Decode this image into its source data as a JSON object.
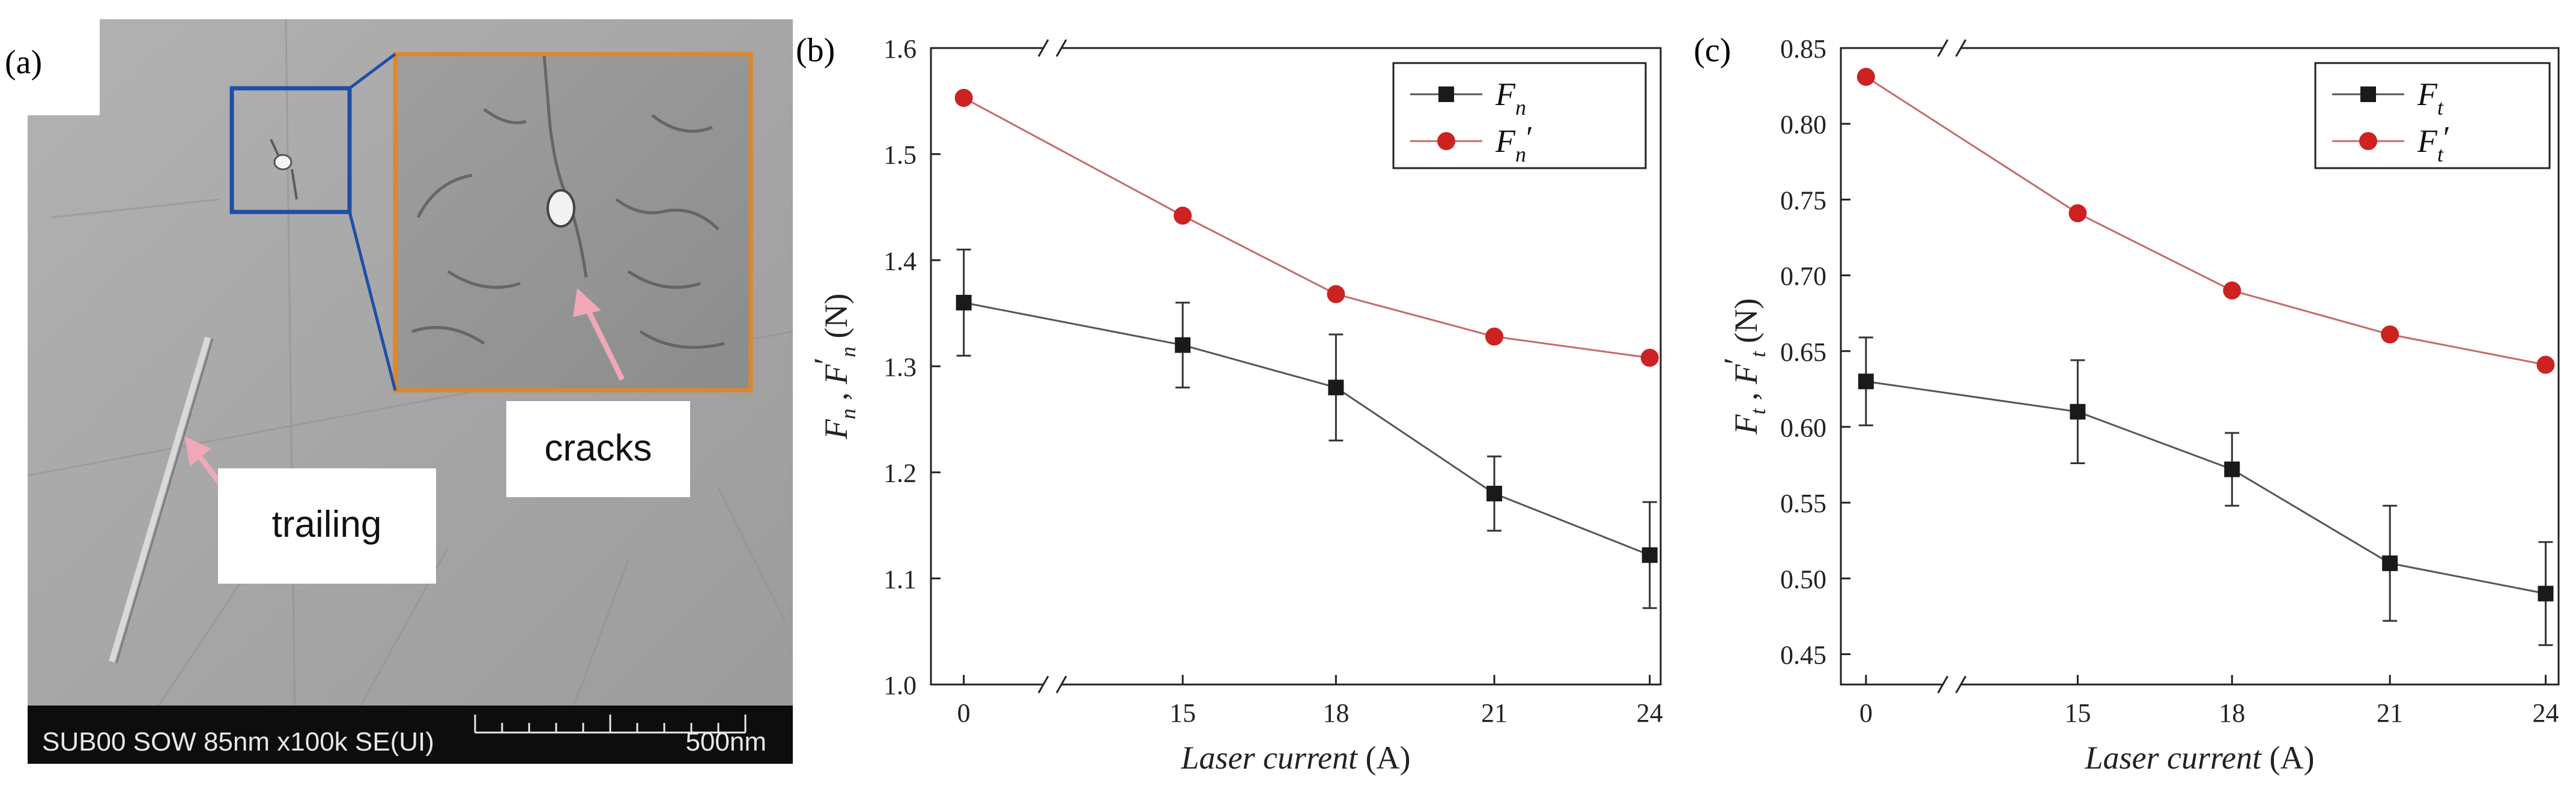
{
  "panels": {
    "a": {
      "letter": "(a)",
      "sem_info": "SUB00 SOW 85nm x100k SE(UI)",
      "scale_label": "500nm",
      "labels": {
        "cracks": "cracks",
        "trailing": "trailing"
      },
      "colors": {
        "blue_box": "#1f4ea8",
        "orange_box": "#e0862a",
        "arrow": "#f0a8b8"
      }
    },
    "b": {
      "letter": "(b)"
    },
    "c": {
      "letter": "(c)"
    }
  },
  "chart_data": [
    {
      "type": "line",
      "panel": "b",
      "x_categories": [
        "0",
        "15",
        "18",
        "21",
        "24"
      ],
      "xlabel": {
        "italic": "Laser current",
        "normal": " (A)"
      },
      "ylabel": {
        "base": "F",
        "sub": "n",
        "sep": " , ",
        "base2": "F",
        "prime": "′",
        "sub2": "n",
        "unit": " (N)"
      },
      "ylim": [
        1.0,
        1.6
      ],
      "yticks": [
        1.0,
        1.1,
        1.2,
        1.3,
        1.4,
        1.5,
        1.6
      ],
      "ytick_labels": [
        "1.0",
        "1.1",
        "1.2",
        "1.3",
        "1.4",
        "1.5",
        "1.6"
      ],
      "axis_break": true,
      "legend_position": "top-right",
      "series": [
        {
          "name": "F_n",
          "legend_base": "F",
          "legend_sub": "n",
          "legend_prime": "",
          "marker": "square",
          "color": "#1a1a1a",
          "values": [
            1.36,
            1.32,
            1.28,
            1.18,
            1.122
          ],
          "error": [
            0.05,
            0.04,
            0.05,
            0.035,
            0.05
          ]
        },
        {
          "name": "F_n′",
          "legend_base": "F",
          "legend_sub": "n",
          "legend_prime": "′",
          "marker": "circle",
          "color": "#cc2222",
          "values": [
            1.553,
            1.442,
            1.368,
            1.328,
            1.308
          ]
        }
      ]
    },
    {
      "type": "line",
      "panel": "c",
      "x_categories": [
        "0",
        "15",
        "18",
        "21",
        "24"
      ],
      "xlabel": {
        "italic": "Laser current",
        "normal": " (A)"
      },
      "ylabel": {
        "base": "F",
        "sub": "t",
        "sep": " , ",
        "base2": "F",
        "prime": "′",
        "sub2": "t",
        "unit": " (N)"
      },
      "ylim": [
        0.43,
        0.85
      ],
      "yticks": [
        0.45,
        0.5,
        0.55,
        0.6,
        0.65,
        0.7,
        0.75,
        0.8,
        0.85
      ],
      "ytick_labels": [
        "0.45",
        "0.50",
        "0.55",
        "0.60",
        "0.65",
        "0.70",
        "0.75",
        "0.80",
        "0.85"
      ],
      "axis_break": true,
      "legend_position": "top-right",
      "series": [
        {
          "name": "F_t",
          "legend_base": "F",
          "legend_sub": "t",
          "legend_prime": "",
          "marker": "square",
          "color": "#1a1a1a",
          "values": [
            0.63,
            0.61,
            0.572,
            0.51,
            0.49
          ],
          "error": [
            0.029,
            0.034,
            0.024,
            0.038,
            0.034
          ]
        },
        {
          "name": "F_t′",
          "legend_base": "F",
          "legend_sub": "t",
          "legend_prime": "′",
          "marker": "circle",
          "color": "#cc2222",
          "values": [
            0.831,
            0.741,
            0.69,
            0.661,
            0.641
          ]
        }
      ]
    }
  ]
}
